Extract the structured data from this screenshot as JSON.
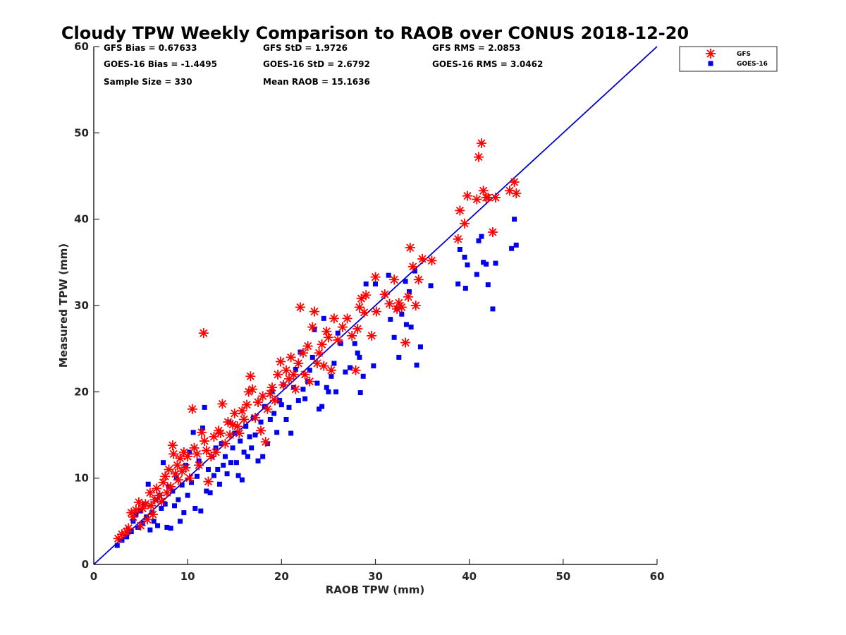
{
  "chart_data": {
    "type": "scatter",
    "title": "Cloudy TPW Weekly Comparison to RAOB over CONUS 2018-12-20",
    "xlabel": "RAOB TPW (mm)",
    "ylabel": "Measured TPW (mm)",
    "xlim": [
      0,
      60
    ],
    "ylim": [
      0,
      60
    ],
    "xticks": [
      "0",
      "10",
      "20",
      "30",
      "40",
      "50",
      "60"
    ],
    "yticks": [
      "0",
      "10",
      "20",
      "30",
      "40",
      "50",
      "60"
    ],
    "grid": false,
    "legend_position": "outside-top-right",
    "reference_line": {
      "x": [
        0,
        60
      ],
      "y": [
        0,
        60
      ],
      "color": "#0000cc"
    },
    "stats": [
      "GFS Bias = 0.67633",
      "GFS StD = 1.9726",
      "GFS RMS = 2.0853",
      "GOES-16 Bias = -1.4495",
      "GOES-16 StD = 2.6792",
      "GOES-16 RMS = 3.0462",
      "Sample Size = 330",
      "Mean RAOB = 15.1636"
    ],
    "series": [
      {
        "name": "GFS",
        "marker": "asterisk",
        "color": "#ff0000",
        "points": [
          [
            2.6,
            3.0
          ],
          [
            3.0,
            3.5
          ],
          [
            3.5,
            3.8
          ],
          [
            3.7,
            4.2
          ],
          [
            4.0,
            6.0
          ],
          [
            4.2,
            5.5
          ],
          [
            4.5,
            6.3
          ],
          [
            4.8,
            7.2
          ],
          [
            5.0,
            4.5
          ],
          [
            5.2,
            6.5
          ],
          [
            5.5,
            7.0
          ],
          [
            5.7,
            5.2
          ],
          [
            6.0,
            8.3
          ],
          [
            6.1,
            6.8
          ],
          [
            6.3,
            5.8
          ],
          [
            6.5,
            7.5
          ],
          [
            6.7,
            8.8
          ],
          [
            7.0,
            8.0
          ],
          [
            7.2,
            7.3
          ],
          [
            7.4,
            9.5
          ],
          [
            7.6,
            10.2
          ],
          [
            7.8,
            8.3
          ],
          [
            8.0,
            11.0
          ],
          [
            8.2,
            9.0
          ],
          [
            8.4,
            13.8
          ],
          [
            8.5,
            12.8
          ],
          [
            8.7,
            10.5
          ],
          [
            8.9,
            11.5
          ],
          [
            9.0,
            9.8
          ],
          [
            9.2,
            12.3
          ],
          [
            9.4,
            10.8
          ],
          [
            9.6,
            13.0
          ],
          [
            9.8,
            11.2
          ],
          [
            10.0,
            12.5
          ],
          [
            10.2,
            10.0
          ],
          [
            10.5,
            18.0
          ],
          [
            10.7,
            13.5
          ],
          [
            11.0,
            12.8
          ],
          [
            11.2,
            11.5
          ],
          [
            11.5,
            15.3
          ],
          [
            11.7,
            26.8
          ],
          [
            11.8,
            14.3
          ],
          [
            12.0,
            13.2
          ],
          [
            12.2,
            9.6
          ],
          [
            12.5,
            12.5
          ],
          [
            12.8,
            14.8
          ],
          [
            13.0,
            13.0
          ],
          [
            13.3,
            15.5
          ],
          [
            13.5,
            15.2
          ],
          [
            13.7,
            18.6
          ],
          [
            14.0,
            14.0
          ],
          [
            14.3,
            16.5
          ],
          [
            14.5,
            15.0
          ],
          [
            14.8,
            16.2
          ],
          [
            15.0,
            17.5
          ],
          [
            15.3,
            16.0
          ],
          [
            15.5,
            15.2
          ],
          [
            15.8,
            17.8
          ],
          [
            16.0,
            16.8
          ],
          [
            16.3,
            18.5
          ],
          [
            16.5,
            20.0
          ],
          [
            16.7,
            21.8
          ],
          [
            16.9,
            20.3
          ],
          [
            17.2,
            17.0
          ],
          [
            17.5,
            18.8
          ],
          [
            17.8,
            15.5
          ],
          [
            18.0,
            19.5
          ],
          [
            18.3,
            14.2
          ],
          [
            18.5,
            18.0
          ],
          [
            18.8,
            19.8
          ],
          [
            19.0,
            20.5
          ],
          [
            19.3,
            19.0
          ],
          [
            19.6,
            22.0
          ],
          [
            19.9,
            23.5
          ],
          [
            20.2,
            20.8
          ],
          [
            20.5,
            22.5
          ],
          [
            20.8,
            21.5
          ],
          [
            21.0,
            24.0
          ],
          [
            21.3,
            22.0
          ],
          [
            21.5,
            20.3
          ],
          [
            21.8,
            23.3
          ],
          [
            22.0,
            29.8
          ],
          [
            22.3,
            24.5
          ],
          [
            22.5,
            22.0
          ],
          [
            22.8,
            25.3
          ],
          [
            23.0,
            21.2
          ],
          [
            23.3,
            27.5
          ],
          [
            23.5,
            29.3
          ],
          [
            23.8,
            23.3
          ],
          [
            24.0,
            24.5
          ],
          [
            24.3,
            25.5
          ],
          [
            24.5,
            23.0
          ],
          [
            24.8,
            27.0
          ],
          [
            25.0,
            26.3
          ],
          [
            25.3,
            22.5
          ],
          [
            25.6,
            28.5
          ],
          [
            26.0,
            26.0
          ],
          [
            26.5,
            27.5
          ],
          [
            27.0,
            28.5
          ],
          [
            27.5,
            26.5
          ],
          [
            27.9,
            22.5
          ],
          [
            28.1,
            27.3
          ],
          [
            28.3,
            29.8
          ],
          [
            28.5,
            30.8
          ],
          [
            28.8,
            29.2
          ],
          [
            29.0,
            31.2
          ],
          [
            29.6,
            26.5
          ],
          [
            30.0,
            33.3
          ],
          [
            30.1,
            29.3
          ],
          [
            31.0,
            31.3
          ],
          [
            31.5,
            30.2
          ],
          [
            32.0,
            33.0
          ],
          [
            32.3,
            29.6
          ],
          [
            32.5,
            30.3
          ],
          [
            32.8,
            29.8
          ],
          [
            33.2,
            25.7
          ],
          [
            33.5,
            31.0
          ],
          [
            33.7,
            36.7
          ],
          [
            34.0,
            34.5
          ],
          [
            34.3,
            30.0
          ],
          [
            34.6,
            33.0
          ],
          [
            35.0,
            35.4
          ],
          [
            36.0,
            35.2
          ],
          [
            38.8,
            37.7
          ],
          [
            39.0,
            41.0
          ],
          [
            39.5,
            39.5
          ],
          [
            39.8,
            42.7
          ],
          [
            40.8,
            42.3
          ],
          [
            41.0,
            47.2
          ],
          [
            41.3,
            48.8
          ],
          [
            41.5,
            43.3
          ],
          [
            41.8,
            42.5
          ],
          [
            42.0,
            42.5
          ],
          [
            42.5,
            38.5
          ],
          [
            42.8,
            42.5
          ],
          [
            44.3,
            43.3
          ],
          [
            44.8,
            44.3
          ],
          [
            45.0,
            43.0
          ]
        ]
      },
      {
        "name": "GOES-16",
        "marker": "square",
        "color": "#0000ee",
        "points": [
          [
            2.5,
            2.2
          ],
          [
            3.0,
            2.8
          ],
          [
            3.5,
            3.2
          ],
          [
            4.0,
            3.8
          ],
          [
            4.2,
            5.0
          ],
          [
            4.5,
            5.8
          ],
          [
            4.7,
            4.3
          ],
          [
            5.0,
            6.2
          ],
          [
            5.2,
            4.8
          ],
          [
            5.4,
            7.0
          ],
          [
            5.6,
            5.5
          ],
          [
            5.8,
            9.3
          ],
          [
            6.0,
            4.0
          ],
          [
            6.2,
            6.0
          ],
          [
            6.4,
            5.0
          ],
          [
            6.6,
            7.5
          ],
          [
            6.8,
            4.5
          ],
          [
            7.0,
            8.0
          ],
          [
            7.2,
            6.5
          ],
          [
            7.4,
            11.8
          ],
          [
            7.6,
            7.0
          ],
          [
            7.8,
            4.3
          ],
          [
            8.0,
            9.0
          ],
          [
            8.2,
            4.2
          ],
          [
            8.4,
            8.5
          ],
          [
            8.6,
            6.8
          ],
          [
            8.8,
            10.0
          ],
          [
            9.0,
            7.5
          ],
          [
            9.2,
            5.0
          ],
          [
            9.4,
            9.2
          ],
          [
            9.6,
            6.0
          ],
          [
            9.8,
            11.5
          ],
          [
            10.0,
            8.0
          ],
          [
            10.2,
            13.0
          ],
          [
            10.4,
            9.5
          ],
          [
            10.6,
            15.3
          ],
          [
            10.8,
            6.5
          ],
          [
            11.0,
            10.2
          ],
          [
            11.2,
            12.0
          ],
          [
            11.4,
            6.2
          ],
          [
            11.6,
            15.8
          ],
          [
            11.8,
            18.2
          ],
          [
            12.0,
            8.5
          ],
          [
            12.2,
            11.0
          ],
          [
            12.4,
            8.3
          ],
          [
            12.6,
            12.5
          ],
          [
            12.8,
            10.3
          ],
          [
            13.0,
            13.5
          ],
          [
            13.2,
            11.0
          ],
          [
            13.4,
            9.3
          ],
          [
            13.6,
            14.0
          ],
          [
            13.8,
            11.5
          ],
          [
            14.0,
            12.5
          ],
          [
            14.2,
            10.5
          ],
          [
            14.4,
            16.5
          ],
          [
            14.6,
            11.8
          ],
          [
            14.8,
            13.5
          ],
          [
            15.0,
            15.2
          ],
          [
            15.2,
            11.8
          ],
          [
            15.4,
            10.3
          ],
          [
            15.6,
            14.3
          ],
          [
            15.8,
            9.8
          ],
          [
            16.0,
            13.0
          ],
          [
            16.2,
            16.0
          ],
          [
            16.4,
            12.5
          ],
          [
            16.6,
            14.8
          ],
          [
            16.8,
            13.5
          ],
          [
            17.0,
            17.0
          ],
          [
            17.2,
            15.0
          ],
          [
            17.5,
            12.0
          ],
          [
            17.8,
            16.5
          ],
          [
            18.0,
            12.5
          ],
          [
            18.2,
            18.3
          ],
          [
            18.5,
            14.0
          ],
          [
            18.8,
            16.8
          ],
          [
            19.0,
            20.0
          ],
          [
            19.2,
            17.5
          ],
          [
            19.5,
            15.3
          ],
          [
            19.8,
            19.0
          ],
          [
            20.0,
            18.5
          ],
          [
            20.2,
            20.8
          ],
          [
            20.5,
            16.8
          ],
          [
            20.8,
            18.2
          ],
          [
            21.0,
            15.2
          ],
          [
            21.3,
            20.5
          ],
          [
            21.5,
            22.6
          ],
          [
            21.8,
            19.0
          ],
          [
            22.0,
            24.6
          ],
          [
            22.3,
            20.3
          ],
          [
            22.5,
            19.2
          ],
          [
            22.8,
            21.2
          ],
          [
            23.0,
            22.5
          ],
          [
            23.3,
            24.0
          ],
          [
            23.5,
            27.2
          ],
          [
            23.8,
            21.0
          ],
          [
            24.0,
            18.0
          ],
          [
            24.3,
            18.3
          ],
          [
            24.5,
            28.5
          ],
          [
            24.8,
            20.5
          ],
          [
            25.0,
            20.0
          ],
          [
            25.3,
            21.8
          ],
          [
            25.6,
            23.3
          ],
          [
            25.8,
            20.0
          ],
          [
            26.0,
            26.8
          ],
          [
            26.3,
            25.6
          ],
          [
            26.8,
            22.3
          ],
          [
            27.3,
            22.8
          ],
          [
            27.8,
            25.6
          ],
          [
            28.1,
            24.5
          ],
          [
            28.3,
            24.0
          ],
          [
            28.4,
            19.9
          ],
          [
            28.7,
            21.8
          ],
          [
            29.0,
            32.5
          ],
          [
            29.8,
            23.0
          ],
          [
            30.0,
            32.5
          ],
          [
            31.4,
            33.5
          ],
          [
            31.6,
            28.4
          ],
          [
            32.0,
            26.3
          ],
          [
            32.3,
            29.6
          ],
          [
            32.5,
            24.0
          ],
          [
            32.8,
            29.0
          ],
          [
            33.2,
            32.8
          ],
          [
            33.3,
            27.8
          ],
          [
            33.6,
            31.6
          ],
          [
            33.8,
            27.5
          ],
          [
            34.2,
            34.0
          ],
          [
            34.4,
            23.1
          ],
          [
            34.8,
            25.2
          ],
          [
            35.9,
            32.3
          ],
          [
            38.8,
            32.5
          ],
          [
            39.0,
            36.5
          ],
          [
            39.5,
            35.6
          ],
          [
            39.6,
            32.0
          ],
          [
            39.8,
            34.7
          ],
          [
            40.8,
            33.6
          ],
          [
            41.0,
            37.5
          ],
          [
            41.3,
            38.0
          ],
          [
            41.5,
            35.0
          ],
          [
            41.8,
            34.8
          ],
          [
            42.0,
            32.4
          ],
          [
            42.5,
            29.6
          ],
          [
            42.8,
            34.9
          ],
          [
            44.5,
            36.6
          ],
          [
            44.8,
            40.0
          ],
          [
            45.0,
            37.0
          ]
        ]
      }
    ]
  }
}
